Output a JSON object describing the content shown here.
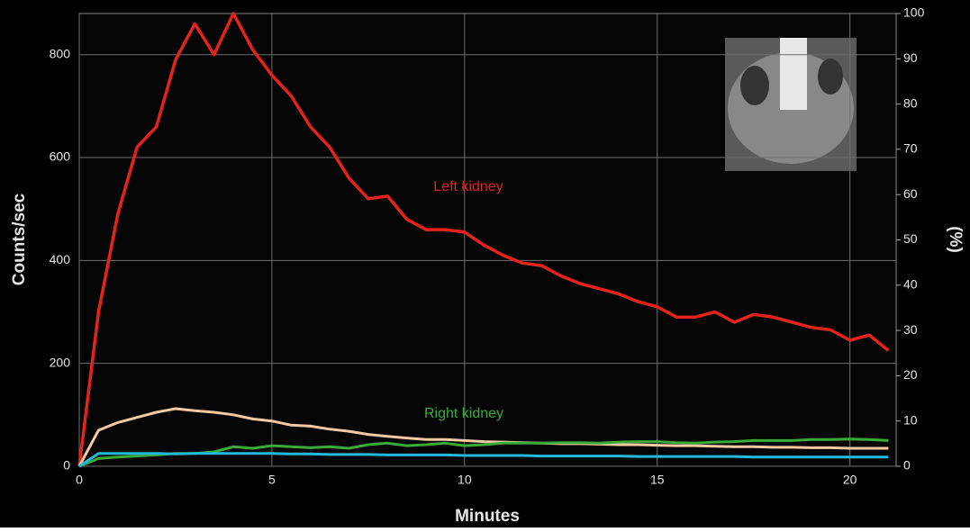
{
  "chart_data": {
    "type": "line",
    "x_label": "Minutes",
    "y_label": "Counts/sec",
    "y2_label": "(%)",
    "xlim": [
      0,
      21.2
    ],
    "xticks": [
      0,
      5,
      10,
      15,
      20
    ],
    "ylim": [
      0,
      880
    ],
    "yticks": [
      0,
      200,
      400,
      600,
      800
    ],
    "y2lim": [
      0,
      100
    ],
    "y2ticks": [
      0,
      10,
      20,
      30,
      40,
      50,
      60,
      70,
      80,
      90,
      100
    ],
    "grid": true,
    "x": [
      0,
      0.5,
      1,
      1.5,
      2,
      2.5,
      3,
      3.5,
      4,
      4.5,
      5,
      5.5,
      6,
      6.5,
      7,
      7.5,
      8,
      8.5,
      9,
      9.5,
      10,
      10.5,
      11,
      11.5,
      12,
      12.5,
      13,
      13.5,
      14,
      14.5,
      15,
      15.5,
      16,
      16.5,
      17,
      17.5,
      18,
      18.5,
      19,
      19.5,
      20,
      20.5,
      21
    ],
    "series": [
      {
        "name": "Left kidney",
        "color": "#e3231c",
        "values": [
          0,
          300,
          490,
          620,
          660,
          790,
          860,
          800,
          880,
          810,
          760,
          720,
          660,
          620,
          560,
          520,
          525,
          480,
          460,
          460,
          455,
          430,
          410,
          395,
          390,
          370,
          355,
          345,
          335,
          320,
          310,
          290,
          290,
          300,
          280,
          295,
          290,
          280,
          270,
          265,
          245,
          255,
          225
        ]
      },
      {
        "color": "#f2c9a2",
        "values": [
          0,
          70,
          85,
          95,
          105,
          112,
          108,
          105,
          100,
          92,
          88,
          80,
          78,
          72,
          68,
          62,
          58,
          55,
          52,
          52,
          50,
          48,
          47,
          46,
          45,
          44,
          44,
          43,
          42,
          42,
          41,
          40,
          40,
          39,
          38,
          38,
          37,
          37,
          36,
          36,
          35,
          35,
          35
        ]
      },
      {
        "name": "Right kidney",
        "color": "#3aab38",
        "values": [
          0,
          15,
          18,
          20,
          22,
          25,
          25,
          28,
          38,
          35,
          40,
          38,
          36,
          38,
          35,
          42,
          45,
          40,
          42,
          45,
          40,
          42,
          45,
          45,
          45,
          46,
          46,
          45,
          47,
          48,
          48,
          46,
          45,
          47,
          48,
          50,
          50,
          50,
          52,
          52,
          53,
          52,
          50
        ]
      },
      {
        "color": "#22b9dc",
        "values": [
          0,
          25,
          25,
          25,
          25,
          24,
          25,
          25,
          25,
          25,
          25,
          24,
          24,
          23,
          23,
          23,
          22,
          22,
          22,
          22,
          21,
          21,
          21,
          21,
          20,
          20,
          20,
          20,
          20,
          19,
          19,
          19,
          19,
          19,
          19,
          18,
          18,
          18,
          18,
          18,
          18,
          18,
          18
        ]
      }
    ]
  }
}
